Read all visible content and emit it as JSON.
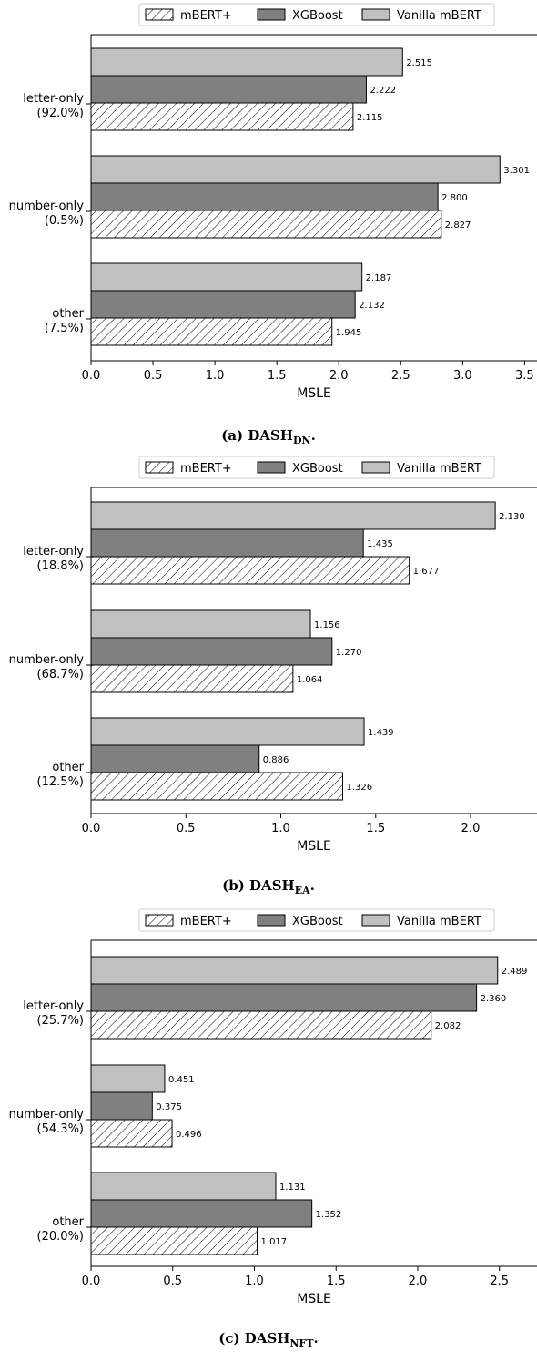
{
  "series_styles": {
    "mBERT+": {
      "fill": "#ffffff",
      "hatch": true
    },
    "XGBoost": {
      "fill": "#808080",
      "hatch": false
    },
    "Vanilla mBERT": {
      "fill": "#c0c0c0",
      "hatch": false
    }
  },
  "legend_order": [
    "mBERT+",
    "XGBoost",
    "Vanilla mBERT"
  ],
  "chart_data": [
    {
      "type": "bar",
      "orientation": "horizontal",
      "caption": {
        "prefix": "(a) DASH",
        "sub": "DN",
        "suffix": "."
      },
      "xlabel": "MSLE",
      "xlim": [
        0,
        3.6
      ],
      "xticks": [
        "0.0",
        "0.5",
        "1.0",
        "1.5",
        "2.0",
        "2.5",
        "3.0",
        "3.5"
      ],
      "categories": [
        {
          "name": "letter-only",
          "pct": "(92.0%)"
        },
        {
          "name": "number-only",
          "pct": "(0.5%)"
        },
        {
          "name": "other",
          "pct": "(7.5%)"
        }
      ],
      "series": [
        {
          "name": "mBERT+",
          "values": [
            2.115,
            2.827,
            1.945
          ],
          "labels": [
            "2.115",
            "2.827",
            "1.945"
          ]
        },
        {
          "name": "XGBoost",
          "values": [
            2.222,
            2.8,
            2.132
          ],
          "labels": [
            "2.222",
            "2.800",
            "2.132"
          ]
        },
        {
          "name": "Vanilla mBERT",
          "values": [
            2.515,
            3.301,
            2.187
          ],
          "labels": [
            "2.515",
            "3.301",
            "2.187"
          ]
        }
      ],
      "legend_position": "top-center"
    },
    {
      "type": "bar",
      "orientation": "horizontal",
      "caption": {
        "prefix": "(b) DASH",
        "sub": "EA",
        "suffix": "."
      },
      "xlabel": "MSLE",
      "xlim": [
        0,
        2.35
      ],
      "xticks": [
        "0.0",
        "0.5",
        "1.0",
        "1.5",
        "2.0"
      ],
      "categories": [
        {
          "name": "letter-only",
          "pct": "(18.8%)"
        },
        {
          "name": "number-only",
          "pct": "(68.7%)"
        },
        {
          "name": "other",
          "pct": "(12.5%)"
        }
      ],
      "series": [
        {
          "name": "mBERT+",
          "values": [
            1.677,
            1.064,
            1.326
          ],
          "labels": [
            "1.677",
            "1.064",
            "1.326"
          ]
        },
        {
          "name": "XGBoost",
          "values": [
            1.435,
            1.27,
            0.886
          ],
          "labels": [
            "1.435",
            "1.270",
            "0.886"
          ]
        },
        {
          "name": "Vanilla mBERT",
          "values": [
            2.13,
            1.156,
            1.439
          ],
          "labels": [
            "2.130",
            "1.156",
            "1.439"
          ]
        }
      ],
      "legend_position": "top-center"
    },
    {
      "type": "bar",
      "orientation": "horizontal",
      "caption": {
        "prefix": "(c) DASH",
        "sub": "NFT",
        "suffix": "."
      },
      "xlabel": "MSLE",
      "xlim": [
        0,
        2.73
      ],
      "xticks": [
        "0.0",
        "0.5",
        "1.0",
        "1.5",
        "2.0",
        "2.5"
      ],
      "categories": [
        {
          "name": "letter-only",
          "pct": "(25.7%)"
        },
        {
          "name": "number-only",
          "pct": "(54.3%)"
        },
        {
          "name": "other",
          "pct": "(20.0%)"
        }
      ],
      "series": [
        {
          "name": "mBERT+",
          "values": [
            2.082,
            0.496,
            1.017
          ],
          "labels": [
            "2.082",
            "0.496",
            "1.017"
          ]
        },
        {
          "name": "XGBoost",
          "values": [
            2.36,
            0.375,
            1.352
          ],
          "labels": [
            "2.360",
            "0.375",
            "1.352"
          ]
        },
        {
          "name": "Vanilla mBERT",
          "values": [
            2.489,
            0.451,
            1.131
          ],
          "labels": [
            "2.489",
            "0.451",
            "1.131"
          ]
        }
      ],
      "legend_position": "top-center"
    }
  ]
}
